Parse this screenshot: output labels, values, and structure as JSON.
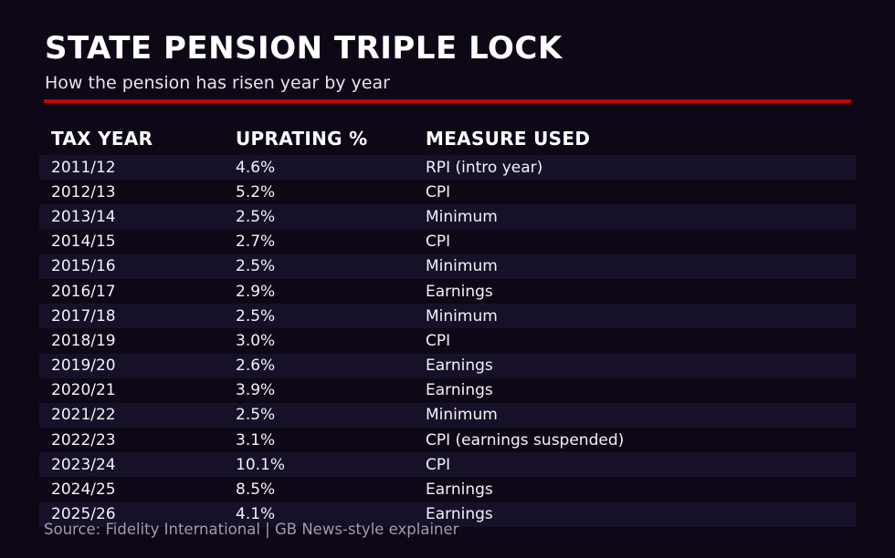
{
  "colors": {
    "background": "#0d0716",
    "row_stripe": "#161129",
    "accent_red": "#cc0000",
    "text_primary": "#ffffff",
    "text_rows": "#f3f2f6",
    "text_muted": "#a19db0"
  },
  "header": {
    "title": "STATE PENSION TRIPLE LOCK",
    "subtitle": "How the pension has risen year by year"
  },
  "table": {
    "columns": [
      "TAX YEAR",
      "UPRATING %",
      "MEASURE USED"
    ],
    "rows": [
      [
        "2011/12",
        "4.6%",
        "RPI (intro year)"
      ],
      [
        "2012/13",
        "5.2%",
        "CPI"
      ],
      [
        "2013/14",
        "2.5%",
        "Minimum"
      ],
      [
        "2014/15",
        "2.7%",
        "CPI"
      ],
      [
        "2015/16",
        "2.5%",
        "Minimum"
      ],
      [
        "2016/17",
        "2.9%",
        "Earnings"
      ],
      [
        "2017/18",
        "2.5%",
        "Minimum"
      ],
      [
        "2018/19",
        "3.0%",
        "CPI"
      ],
      [
        "2019/20",
        "2.6%",
        "Earnings"
      ],
      [
        "2020/21",
        "3.9%",
        "Earnings"
      ],
      [
        "2021/22",
        "2.5%",
        "Minimum"
      ],
      [
        "2022/23",
        "3.1%",
        "CPI (earnings suspended)"
      ],
      [
        "2023/24",
        "10.1%",
        "CPI"
      ],
      [
        "2024/25",
        "8.5%",
        "Earnings"
      ],
      [
        "2025/26",
        "4.1%",
        "Earnings"
      ]
    ]
  },
  "footer": {
    "source": "Source: Fidelity International | GB News-style explainer"
  },
  "chart_data": {
    "type": "table",
    "title": "STATE PENSION TRIPLE LOCK",
    "subtitle": "How the pension has risen year by year",
    "columns": [
      "TAX YEAR",
      "UPRATING %",
      "MEASURE USED"
    ],
    "rows": [
      {
        "tax_year": "2011/12",
        "uprating_pct": 4.6,
        "measure": "RPI (intro year)"
      },
      {
        "tax_year": "2012/13",
        "uprating_pct": 5.2,
        "measure": "CPI"
      },
      {
        "tax_year": "2013/14",
        "uprating_pct": 2.5,
        "measure": "Minimum"
      },
      {
        "tax_year": "2014/15",
        "uprating_pct": 2.7,
        "measure": "CPI"
      },
      {
        "tax_year": "2015/16",
        "uprating_pct": 2.5,
        "measure": "Minimum"
      },
      {
        "tax_year": "2016/17",
        "uprating_pct": 2.9,
        "measure": "Earnings"
      },
      {
        "tax_year": "2017/18",
        "uprating_pct": 2.5,
        "measure": "Minimum"
      },
      {
        "tax_year": "2018/19",
        "uprating_pct": 3.0,
        "measure": "CPI"
      },
      {
        "tax_year": "2019/20",
        "uprating_pct": 2.6,
        "measure": "Earnings"
      },
      {
        "tax_year": "2020/21",
        "uprating_pct": 3.9,
        "measure": "Earnings"
      },
      {
        "tax_year": "2021/22",
        "uprating_pct": 2.5,
        "measure": "Minimum"
      },
      {
        "tax_year": "2022/23",
        "uprating_pct": 3.1,
        "measure": "CPI (earnings suspended)"
      },
      {
        "tax_year": "2023/24",
        "uprating_pct": 10.1,
        "measure": "CPI"
      },
      {
        "tax_year": "2024/25",
        "uprating_pct": 8.5,
        "measure": "Earnings"
      },
      {
        "tax_year": "2025/26",
        "uprating_pct": 4.1,
        "measure": "Earnings"
      }
    ],
    "source": "Source: Fidelity International | GB News-style explainer"
  }
}
